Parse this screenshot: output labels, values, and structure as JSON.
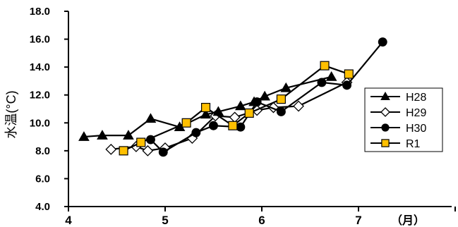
{
  "chart_data": {
    "type": "line",
    "ylabel": "水温(°C)",
    "x_unit_label": "（月）",
    "xlim": [
      4,
      8
    ],
    "ylim": [
      4,
      18
    ],
    "y_ticks": [
      "4.0",
      "6.0",
      "8.0",
      "10.0",
      "12.0",
      "14.0",
      "16.0",
      "18.0"
    ],
    "y_tick_values": [
      4,
      6,
      8,
      10,
      12,
      14,
      16,
      18
    ],
    "x_ticks": [
      "4",
      "5",
      "6",
      "7"
    ],
    "x_tick_values": [
      4,
      5,
      6,
      7
    ],
    "grid": false,
    "legend_position": "right",
    "series": [
      {
        "name": "H28",
        "marker": "triangle",
        "fill": "#000000",
        "points": [
          [
            4.16,
            9.0
          ],
          [
            4.35,
            9.1
          ],
          [
            4.62,
            9.1
          ],
          [
            4.85,
            10.3
          ],
          [
            5.15,
            9.7
          ],
          [
            5.42,
            10.6
          ],
          [
            5.55,
            10.8
          ],
          [
            5.78,
            11.2
          ],
          [
            5.92,
            11.5
          ],
          [
            6.03,
            11.9
          ],
          [
            6.25,
            12.5
          ],
          [
            6.72,
            13.3
          ]
        ]
      },
      {
        "name": "H29",
        "marker": "diamond",
        "fill": "#ffffff",
        "points": [
          [
            4.44,
            8.1
          ],
          [
            4.7,
            8.3
          ],
          [
            4.82,
            8.0
          ],
          [
            5.0,
            8.2
          ],
          [
            5.28,
            8.9
          ],
          [
            5.52,
            10.5
          ],
          [
            5.72,
            10.4
          ],
          [
            5.95,
            10.9
          ],
          [
            6.12,
            11.1
          ],
          [
            6.38,
            11.2
          ],
          [
            6.88,
            12.9
          ]
        ]
      },
      {
        "name": "H30",
        "marker": "circle",
        "fill": "#000000",
        "points": [
          [
            4.85,
            8.8
          ],
          [
            4.98,
            7.9
          ],
          [
            5.32,
            9.3
          ],
          [
            5.5,
            9.8
          ],
          [
            5.78,
            9.7
          ],
          [
            5.95,
            11.5
          ],
          [
            6.2,
            10.8
          ],
          [
            6.62,
            12.9
          ],
          [
            6.88,
            12.7
          ],
          [
            7.25,
            15.8
          ]
        ]
      },
      {
        "name": "R1",
        "marker": "square",
        "fill": "#FFC000",
        "points": [
          [
            4.57,
            8.0
          ],
          [
            4.75,
            8.6
          ],
          [
            5.22,
            10.0
          ],
          [
            5.42,
            11.1
          ],
          [
            5.7,
            9.8
          ],
          [
            5.87,
            10.7
          ],
          [
            6.2,
            11.7
          ],
          [
            6.65,
            14.1
          ],
          [
            6.9,
            13.5
          ]
        ]
      }
    ]
  }
}
